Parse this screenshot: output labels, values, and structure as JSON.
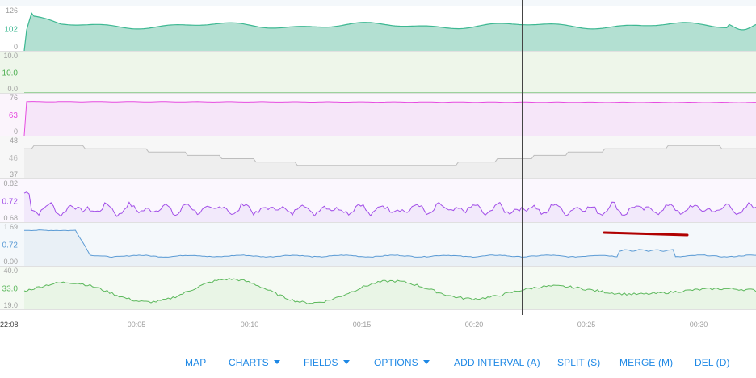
{
  "chart_data": [
    {
      "type": "area",
      "name": "",
      "y_labels": [
        "126",
        "102",
        "0"
      ],
      "current": "102",
      "ylim": [
        0,
        126
      ]
    },
    {
      "type": "area",
      "name": "",
      "y_labels": [
        "10.0",
        "10.0",
        "0.0"
      ],
      "current": "10.0",
      "ylim": [
        0,
        10
      ]
    },
    {
      "type": "area",
      "name": "",
      "y_labels": [
        "76",
        "63",
        "0"
      ],
      "current": "63",
      "ylim": [
        0,
        76
      ]
    },
    {
      "type": "area",
      "name": "",
      "y_labels": [
        "48",
        "46",
        "37"
      ],
      "current": "46",
      "ylim": [
        37,
        48
      ]
    },
    {
      "type": "area",
      "name": "",
      "y_labels": [
        "0.82",
        "0.72",
        "0.68"
      ],
      "current": "0.72",
      "ylim": [
        0.68,
        0.82
      ]
    },
    {
      "type": "area",
      "name": "",
      "y_labels": [
        "1.69",
        "0.72",
        "0.00"
      ],
      "current": "0.72",
      "ylim": [
        0,
        1.69
      ]
    },
    {
      "type": "area",
      "name": "",
      "y_labels": [
        "40.0",
        "33.0",
        "19.0"
      ],
      "current": "33.0",
      "ylim": [
        19,
        40
      ]
    }
  ],
  "x_axis": {
    "start_label": "22:08",
    "ticks": [
      "00:05",
      "00:10",
      "00:15",
      "00:20",
      "00:25",
      "00:30"
    ]
  },
  "colors": {
    "c0": "#3db892",
    "c1": "#4caf50",
    "c2": "#e64ce0",
    "c3": "#bdbdbd",
    "c4": "#a24ee8",
    "c5": "#5b9bd5",
    "c6": "#5cb85c",
    "cursor": "#444444",
    "selection": "#b00000",
    "toolbar": "#1e88e5"
  },
  "toolbar": {
    "map": "MAP",
    "charts": "CHARTS",
    "fields": "FIELDS",
    "options": "OPTIONS",
    "add_interval": "ADD INTERVAL (A)",
    "split": "SPLIT (S)",
    "merge": "MERGE (M)",
    "del": "DEL (D)"
  }
}
